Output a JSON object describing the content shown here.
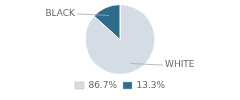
{
  "chart_data": {
    "type": "pie",
    "categories": [
      "WHITE",
      "BLACK"
    ],
    "values": [
      86.7,
      13.3
    ],
    "value_labels": [
      "86.7%",
      "13.3%"
    ],
    "colors": [
      "#d4dde6",
      "#2e6b8a"
    ],
    "legend": "bottom"
  }
}
